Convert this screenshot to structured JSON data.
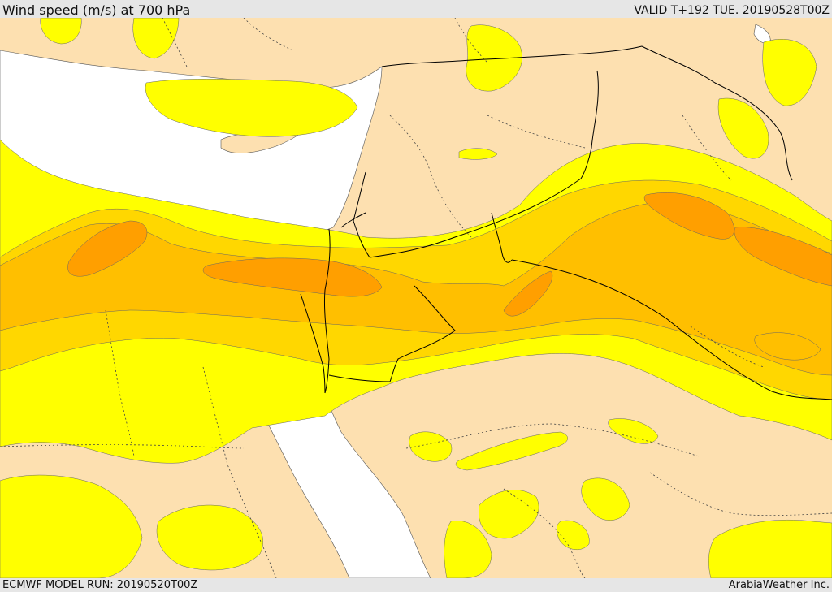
{
  "header": {
    "title": "Wind speed (m/s) at 700 hPa",
    "valid": "VALID T+192 TUE. 20190528T00Z"
  },
  "footer": {
    "model_run": "ECMWF MODEL RUN: 20190520T00Z",
    "credit": "ArabiaWeather Inc."
  },
  "colors": {
    "water": "#ffffff",
    "land_calm": "#fde0b0",
    "band_1": "#ffff00",
    "band_2": "#ffd700",
    "band_3": "#ffbf00",
    "band_4": "#ff9f00",
    "border": "#000000"
  }
}
